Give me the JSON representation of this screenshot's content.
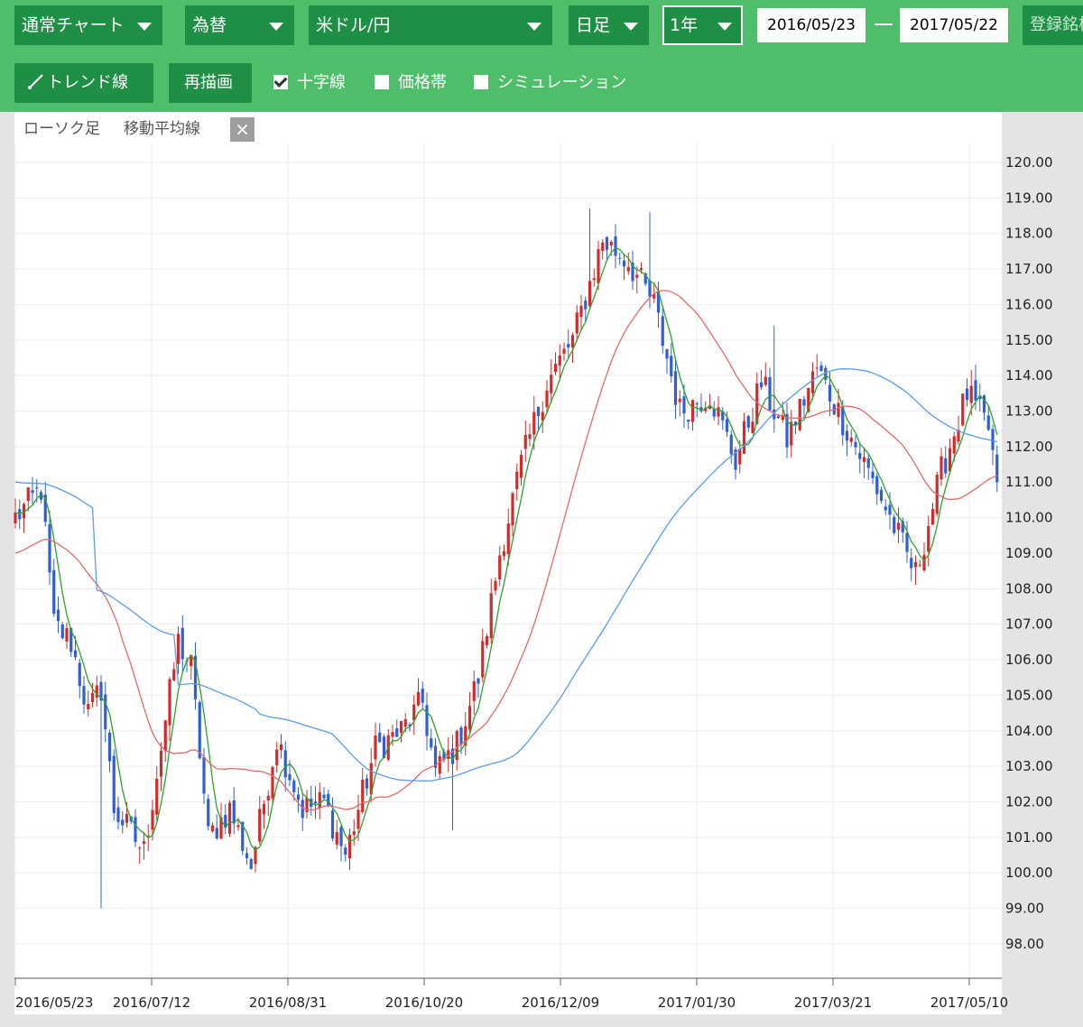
{
  "toolbar": {
    "chart_type": "通常チャート",
    "market": "為替",
    "pair": "米ドル/円",
    "interval": "日足",
    "period": "1年",
    "date_from": "2016/05/23",
    "date_to": "2017/05/22",
    "register_label": "登録銘柄"
  },
  "tools": {
    "trend_label": "トレンド線",
    "redraw_label": "再描画",
    "crosshair_label": "十字線",
    "crosshair_checked": true,
    "price_band_label": "価格帯",
    "price_band_checked": false,
    "simulation_label": "シミュレーション",
    "simulation_checked": false
  },
  "legend": {
    "candles_label": "ローソク足",
    "ma_label": "移動平均線",
    "close_symbol": "×"
  },
  "colors": {
    "toolbar": "#4fbe6b",
    "control": "#1f8f46",
    "up_candle": "#d42a2a",
    "down_candle": "#2f5fd8",
    "ma_short": "#2aa52a",
    "ma_mid": "#e86868",
    "ma_long": "#5b9be8"
  },
  "chart_data": {
    "type": "candlestick",
    "ylim": [
      97.5,
      120.5
    ],
    "yticks": [
      "120.00",
      "119.00",
      "118.00",
      "117.00",
      "116.00",
      "115.00",
      "114.00",
      "113.00",
      "112.00",
      "111.00",
      "110.00",
      "109.00",
      "108.00",
      "107.00",
      "106.00",
      "105.00",
      "104.00",
      "103.00",
      "102.00",
      "101.00",
      "100.00",
      "99.00",
      "98.00"
    ],
    "xticks": [
      "2016/05/23",
      "2016/07/12",
      "2016/08/31",
      "2016/10/20",
      "2016/12/09",
      "2017/01/30",
      "2017/03/21",
      "2017/05/10"
    ],
    "close_anchors": [
      [
        0,
        110.0
      ],
      [
        6,
        110.8
      ],
      [
        9,
        107.0
      ],
      [
        13,
        106.5
      ],
      [
        17,
        104.5
      ],
      [
        20,
        105.2
      ],
      [
        23,
        101.8
      ],
      [
        30,
        100.6
      ],
      [
        38,
        106.5
      ],
      [
        41,
        105.8
      ],
      [
        45,
        101.0
      ],
      [
        50,
        101.8
      ],
      [
        55,
        100.2
      ],
      [
        61,
        103.8
      ],
      [
        67,
        101.8
      ],
      [
        72,
        102.0
      ],
      [
        77,
        100.5
      ],
      [
        84,
        103.5
      ],
      [
        90,
        104.0
      ],
      [
        95,
        104.8
      ],
      [
        98,
        102.8
      ],
      [
        103,
        103.6
      ],
      [
        108,
        105.5
      ],
      [
        113,
        109.0
      ],
      [
        118,
        111.5
      ],
      [
        124,
        113.8
      ],
      [
        130,
        115.0
      ],
      [
        137,
        117.8
      ],
      [
        143,
        117.2
      ],
      [
        149,
        116.0
      ],
      [
        155,
        113.0
      ],
      [
        162,
        113.5
      ],
      [
        168,
        111.6
      ],
      [
        174,
        113.8
      ],
      [
        180,
        112.2
      ],
      [
        187,
        114.2
      ],
      [
        194,
        112.5
      ],
      [
        201,
        110.8
      ],
      [
        210,
        108.4
      ],
      [
        216,
        111.3
      ],
      [
        222,
        113.5
      ],
      [
        227,
        112.5
      ],
      [
        229,
        111.0
      ]
    ],
    "spikes": [
      [
        20,
        99.0
      ],
      [
        102,
        101.2
      ],
      [
        134,
        118.7
      ],
      [
        148,
        118.6
      ],
      [
        177,
        115.4
      ],
      [
        181,
        111.7
      ],
      [
        210,
        108.1
      ]
    ],
    "series": [
      {
        "period": 5,
        "color": "#2aa52a",
        "window": 5
      },
      {
        "period": 25,
        "color": "#e86868",
        "window": 25
      },
      {
        "period": 75,
        "color": "#5b9be8",
        "window": 75,
        "pre_values": [
          111.0,
          108.0,
          105.2,
          104.8
        ]
      }
    ]
  }
}
